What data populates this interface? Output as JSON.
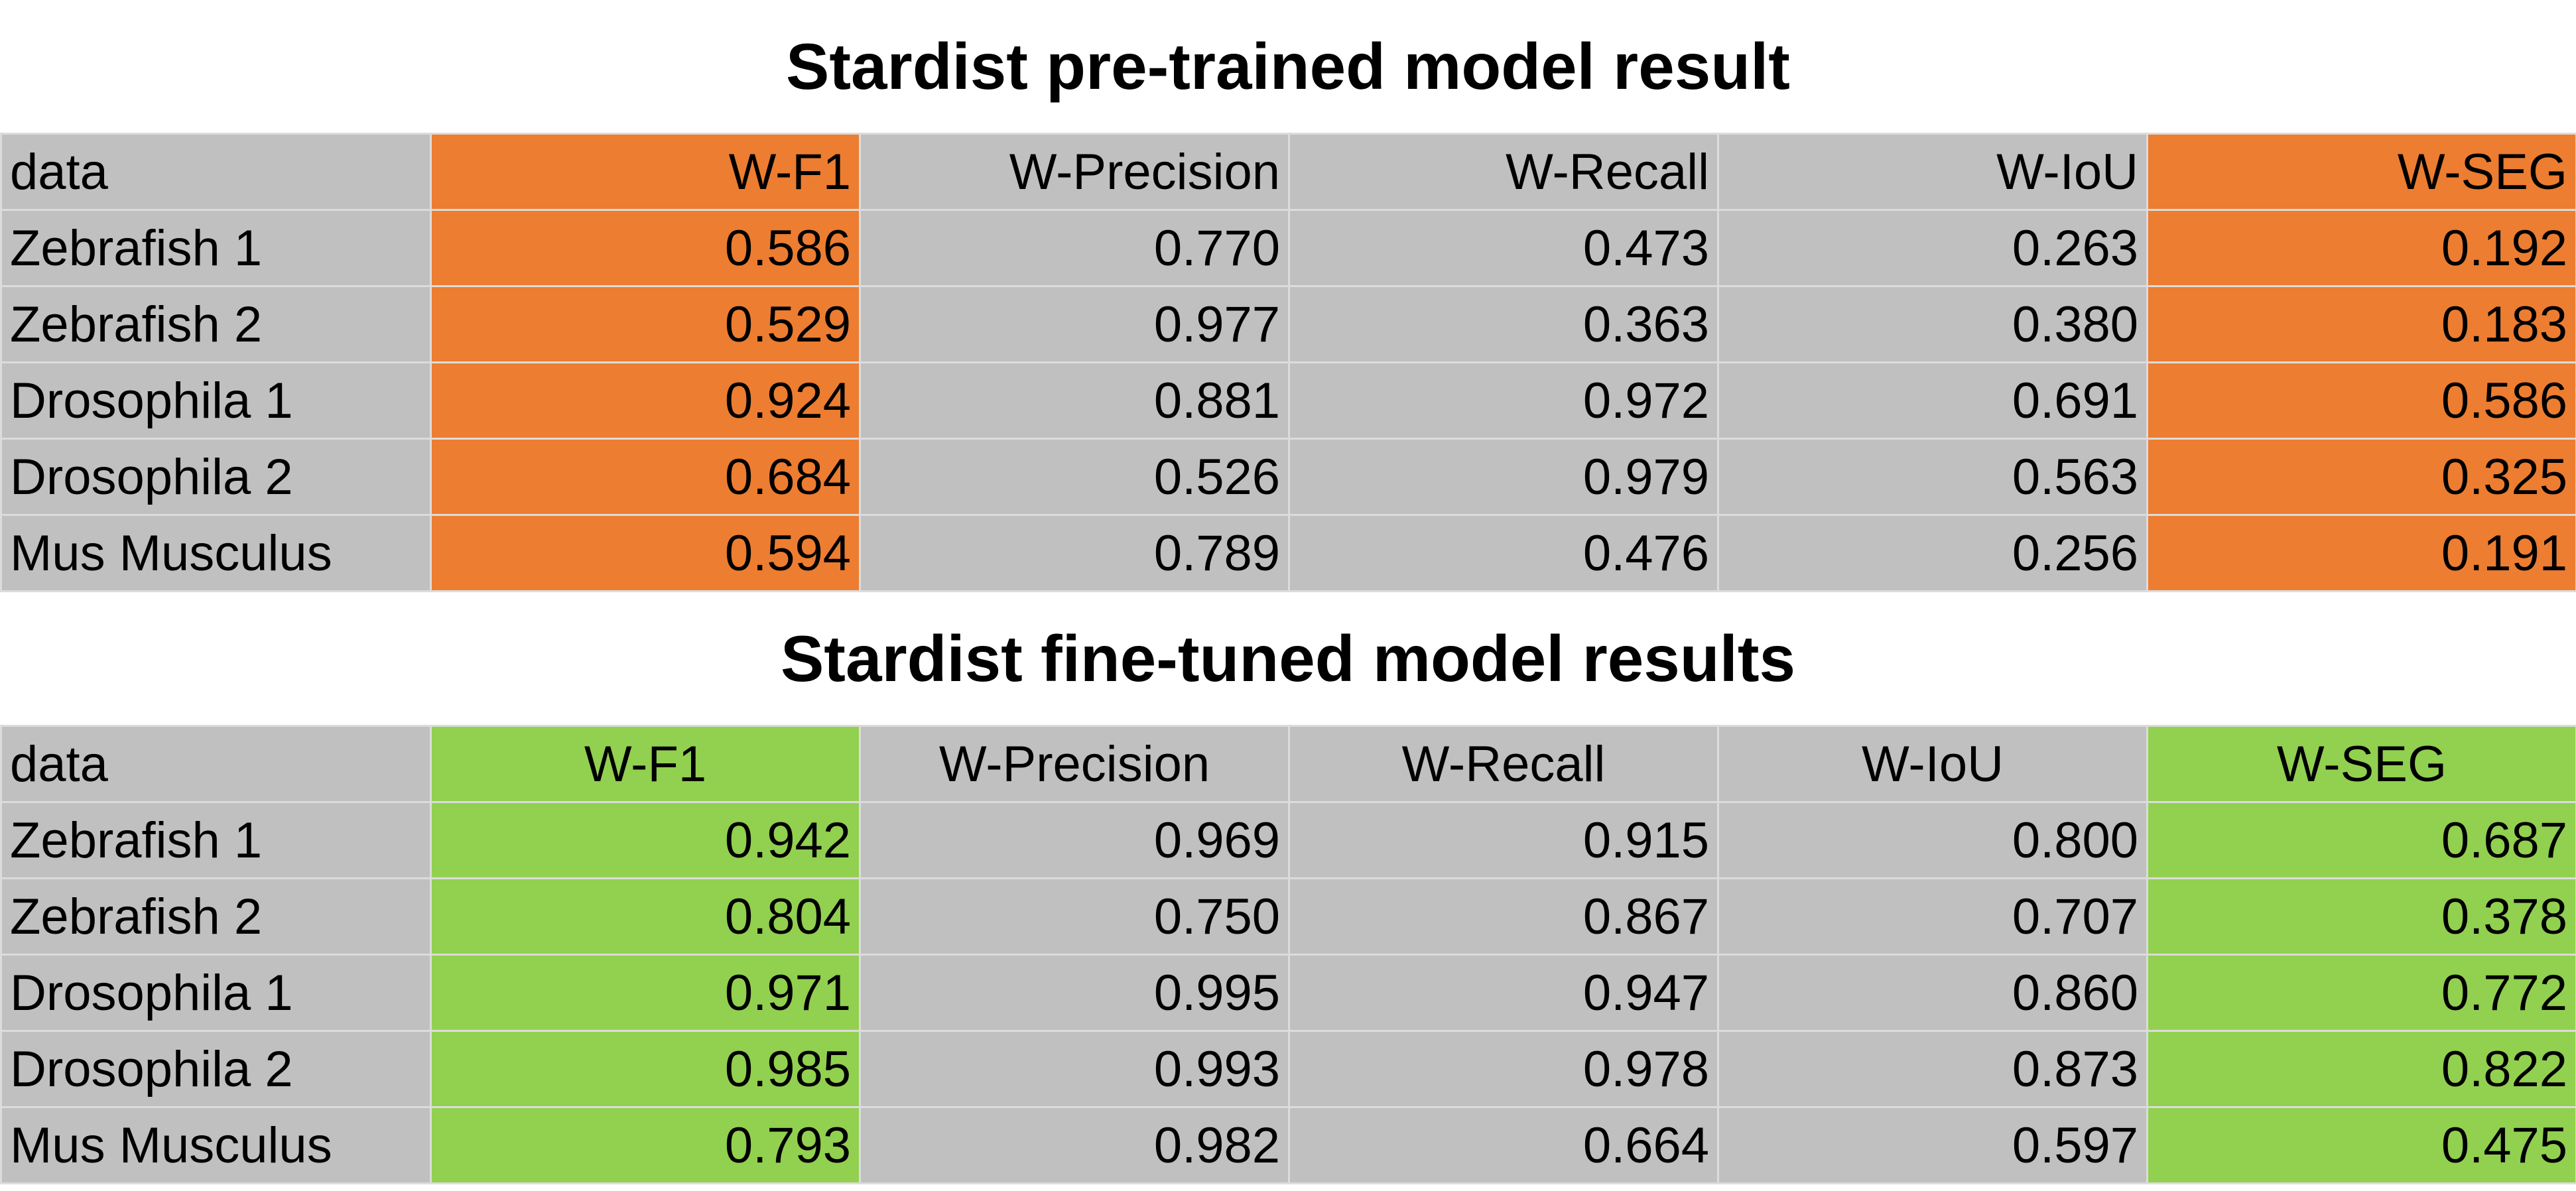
{
  "colors": {
    "highlight_pretrained": "#ed7d31",
    "highlight_finetuned": "#92d050",
    "cell_background": "#c0c0c0",
    "grid_line": "#dcdcdc"
  },
  "pretrained": {
    "title": "Stardist pre-trained model result",
    "highlight_columns": [
      1,
      5
    ],
    "header": [
      "data",
      "W-F1",
      "W-Precision",
      "W-Recall",
      "W-IoU",
      "W-SEG"
    ],
    "rows": [
      [
        "Zebrafish 1",
        "0.586",
        "0.770",
        "0.473",
        "0.263",
        "0.192"
      ],
      [
        "Zebrafish 2",
        "0.529",
        "0.977",
        "0.363",
        "0.380",
        "0.183"
      ],
      [
        "Drosophila 1",
        "0.924",
        "0.881",
        "0.972",
        "0.691",
        "0.586"
      ],
      [
        "Drosophila 2",
        "0.684",
        "0.526",
        "0.979",
        "0.563",
        "0.325"
      ],
      [
        "Mus Musculus",
        "0.594",
        "0.789",
        "0.476",
        "0.256",
        "0.191"
      ]
    ]
  },
  "finetuned": {
    "title": "Stardist fine-tuned model results",
    "highlight_columns": [
      1,
      5
    ],
    "header": [
      "data",
      "W-F1",
      "W-Precision",
      "W-Recall",
      "W-IoU",
      "W-SEG"
    ],
    "rows": [
      [
        "Zebrafish 1",
        "0.942",
        "0.969",
        "0.915",
        "0.800",
        "0.687"
      ],
      [
        "Zebrafish 2",
        "0.804",
        "0.750",
        "0.867",
        "0.707",
        "0.378"
      ],
      [
        "Drosophila 1",
        "0.971",
        "0.995",
        "0.947",
        "0.860",
        "0.772"
      ],
      [
        "Drosophila 2",
        "0.985",
        "0.993",
        "0.978",
        "0.873",
        "0.822"
      ],
      [
        "Mus Musculus",
        "0.793",
        "0.982",
        "0.664",
        "0.597",
        "0.475"
      ]
    ]
  }
}
